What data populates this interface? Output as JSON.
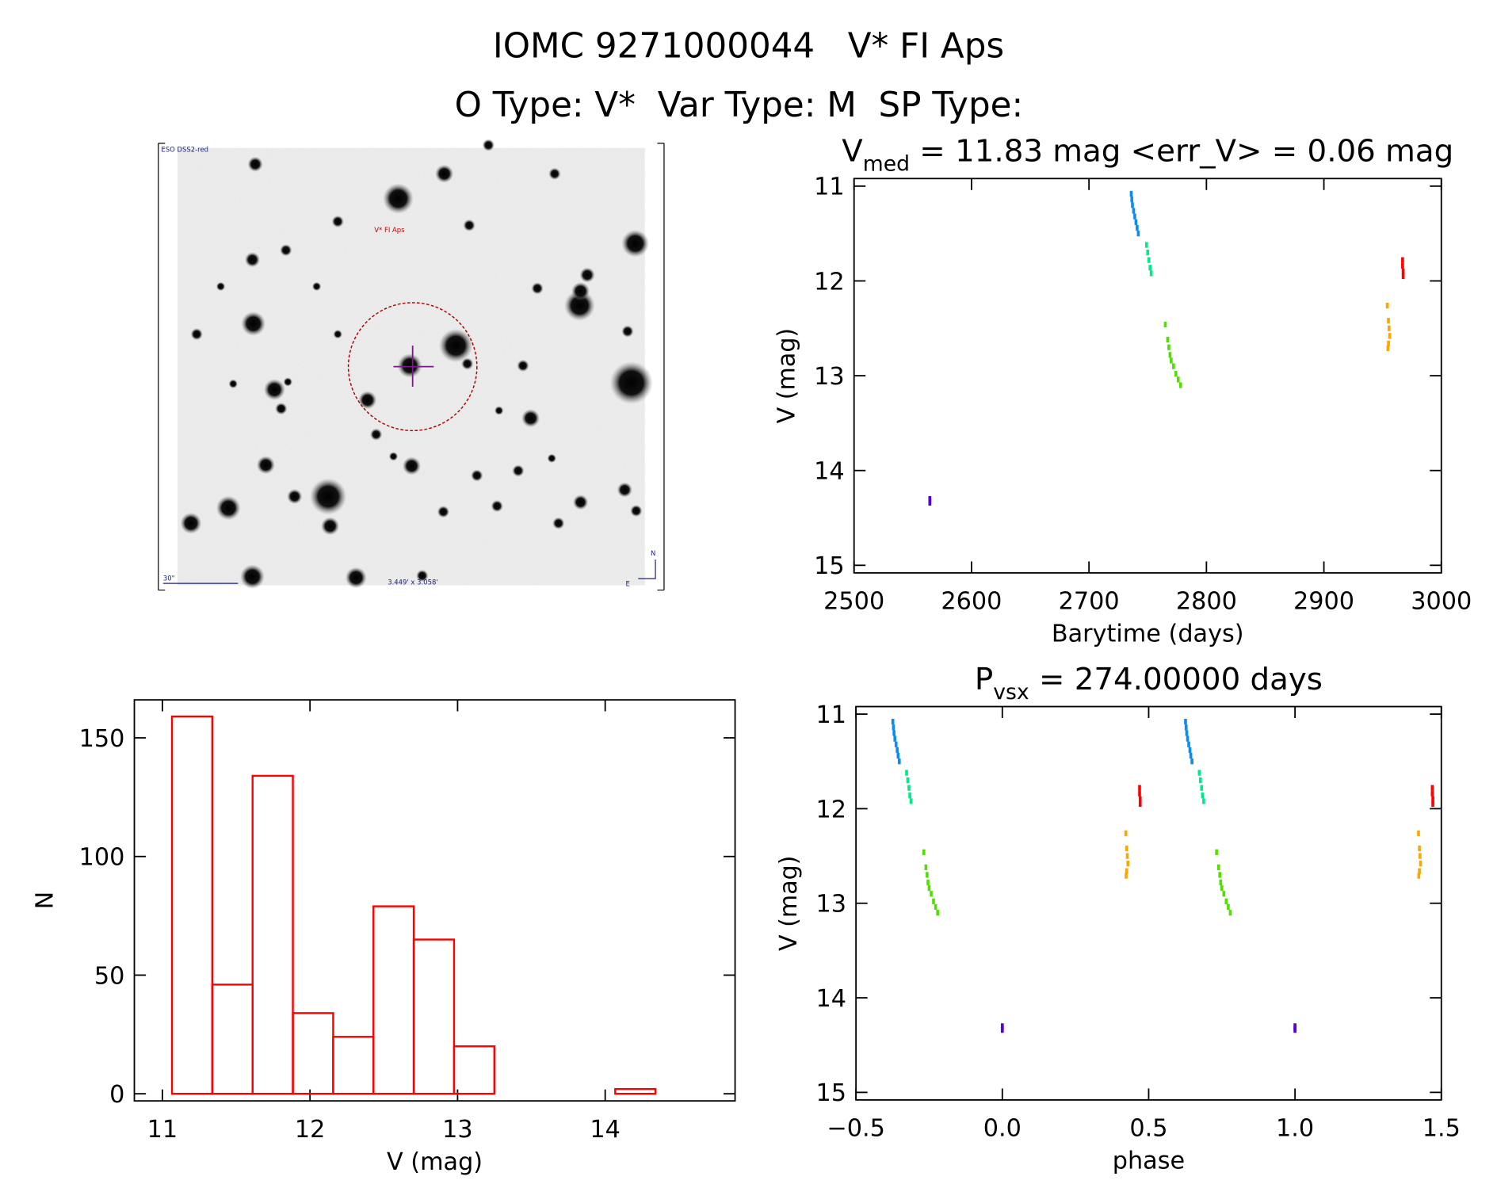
{
  "header": {
    "title": "IOMC 9271000044   V* FI Aps",
    "subtitle": "O Type: V*  Var Type: M  SP Type:"
  },
  "image_panel": {
    "survey": "ESO DSS2-red",
    "target": "V* FI Aps",
    "scale_bar": "30\"",
    "field": "3.449' x 3.058'",
    "north": "N",
    "east": "E"
  },
  "chart_data": [
    {
      "type": "histogram",
      "xlabel": "V (mag)",
      "ylabel": "N",
      "color": "#ff0000",
      "bins": [
        11.065,
        11.338,
        11.611,
        11.884,
        12.157,
        12.43,
        12.703,
        12.976,
        13.249,
        13.522,
        13.795,
        14.068,
        14.341
      ],
      "counts": [
        159,
        46,
        134,
        34,
        24,
        79,
        65,
        20,
        0,
        0,
        0,
        2
      ],
      "xlim": [
        10.81,
        14.88
      ],
      "ylim": [
        -3,
        166
      ],
      "xticks": [
        11,
        12,
        13,
        14
      ],
      "yticks": [
        0,
        50,
        100,
        150
      ]
    },
    {
      "type": "scatter",
      "title_parts": [
        "V",
        "med",
        " = 11.83 mag <err_V> = 0.06 mag"
      ],
      "xlabel": "Barytime (days)",
      "ylabel": "V (mag)",
      "xlim": [
        2500,
        3000
      ],
      "ylim": [
        15.08,
        10.92
      ],
      "xticks": [
        2500,
        2600,
        2700,
        2800,
        2900,
        3000
      ],
      "yticks": [
        11,
        12,
        13,
        14,
        15
      ],
      "series": [
        {
          "color": "#5a00d0",
          "x": [
            2564.5,
            2564.5,
            2564.5
          ],
          "values": [
            14.3,
            14.32,
            14.34
          ]
        },
        {
          "color": "#0a8cf0",
          "x": [
            2736,
            2736.5,
            2737,
            2738,
            2739,
            2740,
            2741,
            2742
          ],
          "values": [
            11.08,
            11.14,
            11.2,
            11.26,
            11.32,
            11.38,
            11.44,
            11.5
          ]
        },
        {
          "color": "#00e88a",
          "x": [
            2749,
            2750,
            2751,
            2752,
            2753
          ],
          "values": [
            11.62,
            11.7,
            11.78,
            11.86,
            11.92
          ]
        },
        {
          "color": "#50e000",
          "x": [
            2765,
            2767,
            2768,
            2769,
            2770,
            2772,
            2774,
            2776,
            2778
          ],
          "values": [
            12.46,
            12.62,
            12.7,
            12.78,
            12.84,
            12.9,
            12.98,
            13.04,
            13.1
          ]
        },
        {
          "color": "#ffa500",
          "x": [
            2954,
            2955,
            2955.5,
            2956,
            2955,
            2954.5
          ],
          "values": [
            12.26,
            12.42,
            12.5,
            12.58,
            12.66,
            12.71
          ]
        },
        {
          "color": "#ff0000",
          "x": [
            2967,
            2967,
            2967.5,
            2967.5
          ],
          "values": [
            11.78,
            11.84,
            11.9,
            11.95
          ]
        }
      ]
    },
    {
      "type": "scatter",
      "title_parts": [
        "P",
        "vsx",
        " = 274.00000 days"
      ],
      "xlabel": "phase",
      "ylabel": "V (mag)",
      "xlim": [
        -0.5,
        1.5
      ],
      "ylim": [
        15.08,
        10.92
      ],
      "xticks": [
        {
          "value": -0.5,
          "label": "−0.5"
        },
        {
          "value": 0,
          "label": "0.0"
        },
        {
          "value": 0.5,
          "label": "0.5"
        },
        {
          "value": 1,
          "label": "1.0"
        },
        {
          "value": 1.5,
          "label": "1.5"
        }
      ],
      "yticks": [
        11,
        12,
        13,
        14,
        15
      ],
      "series": [
        {
          "color": "#5a00d0",
          "x": [
            0,
            0,
            0,
            1,
            1,
            1
          ],
          "values": [
            14.3,
            14.32,
            14.34,
            14.3,
            14.32,
            14.34
          ]
        },
        {
          "color": "#0a8cf0",
          "x": [
            -0.374,
            -0.372,
            -0.37,
            -0.367,
            -0.363,
            -0.359,
            -0.356,
            -0.352,
            0.626,
            0.628,
            0.63,
            0.633,
            0.637,
            0.641,
            0.644,
            0.648
          ],
          "values": [
            11.08,
            11.14,
            11.2,
            11.26,
            11.32,
            11.38,
            11.44,
            11.5,
            11.08,
            11.14,
            11.2,
            11.26,
            11.32,
            11.38,
            11.44,
            11.5
          ]
        },
        {
          "color": "#00e88a",
          "x": [
            -0.327,
            -0.323,
            -0.319,
            -0.316,
            -0.312,
            0.673,
            0.677,
            0.681,
            0.684,
            0.688
          ],
          "values": [
            11.62,
            11.7,
            11.78,
            11.86,
            11.92,
            11.62,
            11.7,
            11.78,
            11.86,
            11.92
          ]
        },
        {
          "color": "#50e000",
          "x": [
            -0.268,
            -0.261,
            -0.257,
            -0.254,
            -0.25,
            -0.243,
            -0.235,
            -0.228,
            -0.221,
            0.732,
            0.739,
            0.743,
            0.746,
            0.75,
            0.757,
            0.765,
            0.772,
            0.779
          ],
          "values": [
            12.46,
            12.62,
            12.7,
            12.78,
            12.84,
            12.9,
            12.98,
            13.04,
            13.1,
            12.46,
            12.62,
            12.7,
            12.78,
            12.84,
            12.9,
            12.98,
            13.04,
            13.1
          ]
        },
        {
          "color": "#ffa500",
          "x": [
            0.422,
            0.425,
            0.427,
            0.429,
            0.425,
            0.423,
            1.422,
            1.425,
            1.427,
            1.429,
            1.425,
            1.423
          ],
          "values": [
            12.26,
            12.42,
            12.5,
            12.58,
            12.66,
            12.71,
            12.26,
            12.42,
            12.5,
            12.58,
            12.66,
            12.71
          ]
        },
        {
          "color": "#ff0000",
          "x": [
            0.469,
            0.469,
            0.471,
            0.471,
            1.469,
            1.469,
            1.471,
            1.471
          ],
          "values": [
            11.78,
            11.84,
            11.9,
            11.95,
            11.78,
            11.84,
            11.9,
            11.95
          ]
        }
      ]
    }
  ]
}
